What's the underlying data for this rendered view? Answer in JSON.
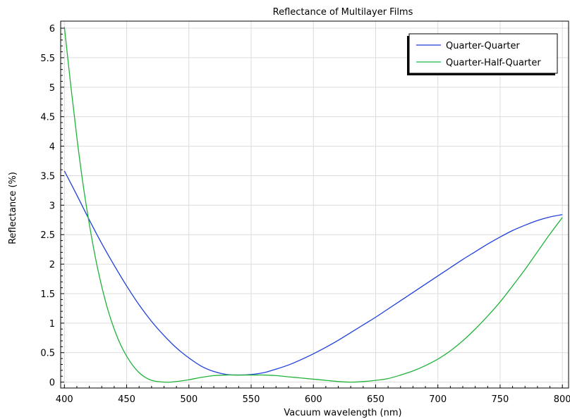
{
  "chart_data": {
    "type": "line",
    "title": "Reflectance of Multilayer Films",
    "xlabel": "Vacuum wavelength (nm)",
    "ylabel": "Reflectance (%)",
    "xlim": [
      397,
      805
    ],
    "ylim": [
      -0.1,
      6.12
    ],
    "xticks": [
      400,
      450,
      500,
      550,
      600,
      650,
      700,
      750,
      800
    ],
    "yticks": [
      0,
      0.5,
      1,
      1.5,
      2,
      2.5,
      3,
      3.5,
      4,
      4.5,
      5,
      5.5,
      6
    ],
    "grid": true,
    "legend_position": "top-right",
    "series": [
      {
        "name": "Quarter-Quarter",
        "color": "#1f3fdc",
        "x": [
          400,
          410,
          420,
          430,
          440,
          450,
          460,
          470,
          480,
          490,
          500,
          510,
          520,
          530,
          540,
          550,
          560,
          570,
          580,
          590,
          600,
          610,
          620,
          630,
          640,
          650,
          660,
          670,
          680,
          690,
          700,
          710,
          720,
          730,
          740,
          750,
          760,
          770,
          780,
          790,
          800
        ],
        "y": [
          3.58,
          3.17,
          2.75,
          2.35,
          1.98,
          1.63,
          1.31,
          1.03,
          0.79,
          0.58,
          0.41,
          0.27,
          0.18,
          0.13,
          0.12,
          0.13,
          0.16,
          0.22,
          0.29,
          0.38,
          0.48,
          0.59,
          0.71,
          0.84,
          0.97,
          1.1,
          1.24,
          1.38,
          1.52,
          1.66,
          1.8,
          1.94,
          2.08,
          2.21,
          2.34,
          2.46,
          2.57,
          2.66,
          2.74,
          2.8,
          2.84
        ]
      },
      {
        "name": "Quarter-Half-Quarter",
        "color": "#22b33a",
        "x": [
          400,
          405,
          410,
          415,
          420,
          425,
          430,
          435,
          440,
          445,
          450,
          455,
          460,
          465,
          470,
          475,
          480,
          485,
          490,
          500,
          510,
          520,
          530,
          540,
          550,
          560,
          570,
          580,
          590,
          600,
          610,
          620,
          630,
          640,
          650,
          660,
          670,
          680,
          690,
          700,
          710,
          720,
          730,
          740,
          750,
          760,
          770,
          780,
          790,
          800
        ],
        "y": [
          6.02,
          5.05,
          4.15,
          3.35,
          2.68,
          2.1,
          1.62,
          1.22,
          0.9,
          0.64,
          0.44,
          0.28,
          0.16,
          0.08,
          0.03,
          0.01,
          0.0,
          0.0,
          0.01,
          0.04,
          0.08,
          0.11,
          0.12,
          0.12,
          0.12,
          0.12,
          0.11,
          0.09,
          0.07,
          0.05,
          0.03,
          0.01,
          0.0,
          0.01,
          0.03,
          0.06,
          0.12,
          0.19,
          0.28,
          0.39,
          0.53,
          0.7,
          0.9,
          1.12,
          1.36,
          1.63,
          1.91,
          2.21,
          2.51,
          2.79
        ]
      }
    ]
  }
}
